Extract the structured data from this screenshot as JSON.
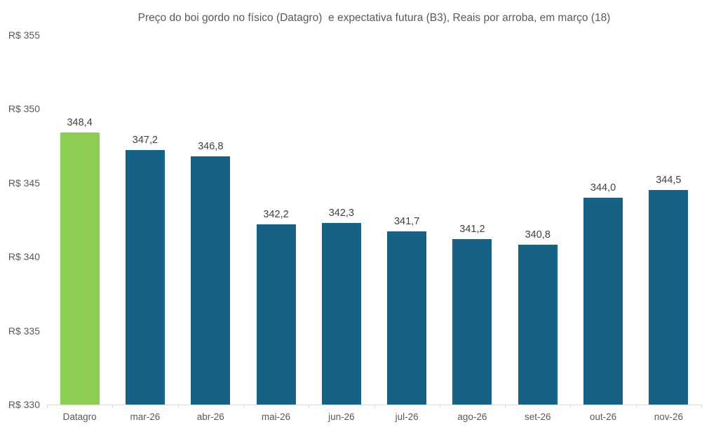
{
  "chart_data": {
    "type": "bar",
    "title": "Preço do boi gordo no físico (Datagro)  e expectativa futura (B3), Reais por arroba, em março (18)",
    "categories": [
      "Datagro",
      "mar-26",
      "abr-26",
      "mai-26",
      "jun-26",
      "jul-26",
      "ago-26",
      "set-26",
      "out-26",
      "nov-26"
    ],
    "values": [
      348.4,
      347.2,
      346.8,
      342.2,
      342.3,
      341.7,
      341.2,
      340.8,
      344.0,
      344.5
    ],
    "value_labels": [
      "348,4",
      "347,2",
      "346,8",
      "342,2",
      "342,3",
      "341,7",
      "341,2",
      "340,8",
      "344,0",
      "344,5"
    ],
    "xlabel": "",
    "ylabel": "",
    "y_ticks": [
      "R$ 355",
      "R$ 350",
      "R$ 345",
      "R$ 340",
      "R$ 335",
      "R$ 330"
    ],
    "y_tick_values": [
      355,
      350,
      345,
      340,
      335,
      330
    ],
    "ylim": [
      330,
      355
    ],
    "grid": false,
    "legend": null,
    "highlight_index": 0,
    "colors": {
      "highlight_bar": "#8DCD53",
      "default_bar": "#176284",
      "axis_line": "#D9D9D9",
      "axis_label": "#595959",
      "value_label": "#404040",
      "title": "#595959"
    }
  }
}
